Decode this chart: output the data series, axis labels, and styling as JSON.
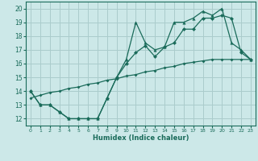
{
  "bg_color": "#cce8e8",
  "grid_color": "#aacccc",
  "line_color": "#1a6b5a",
  "xlabel": "Humidex (Indice chaleur)",
  "xlim": [
    -0.5,
    23.5
  ],
  "ylim": [
    11.5,
    20.5
  ],
  "xticks": [
    0,
    1,
    2,
    3,
    4,
    5,
    6,
    7,
    8,
    9,
    10,
    11,
    12,
    13,
    14,
    15,
    16,
    17,
    18,
    19,
    20,
    21,
    22,
    23
  ],
  "yticks": [
    12,
    13,
    14,
    15,
    16,
    17,
    18,
    19,
    20
  ],
  "line1_x": [
    0,
    1,
    2,
    3,
    4,
    5,
    6,
    7,
    8,
    9,
    10,
    11,
    12,
    13,
    14,
    15,
    16,
    17,
    18,
    19,
    20,
    21,
    22,
    23
  ],
  "line1_y": [
    14,
    13,
    13,
    12.5,
    12,
    12,
    12,
    12,
    13.5,
    15,
    16.3,
    19,
    17.5,
    17,
    17.2,
    19,
    19,
    19.3,
    19.8,
    19.5,
    20,
    17.5,
    17,
    16.3
  ],
  "line2_x": [
    0,
    1,
    2,
    3,
    4,
    5,
    6,
    7,
    8,
    9,
    10,
    11,
    12,
    13,
    14,
    15,
    16,
    17,
    18,
    19,
    20,
    21,
    22,
    23
  ],
  "line2_y": [
    14,
    13,
    13,
    12.5,
    12,
    12,
    12,
    12,
    13.5,
    15,
    16,
    16.8,
    17.3,
    16.5,
    17.2,
    17.5,
    18.5,
    18.5,
    19.3,
    19.3,
    19.5,
    19.3,
    16.8,
    16.3
  ],
  "line3_x": [
    0,
    1,
    2,
    3,
    4,
    5,
    6,
    7,
    8,
    9,
    10,
    11,
    12,
    13,
    14,
    15,
    16,
    17,
    18,
    19,
    20,
    21,
    22,
    23
  ],
  "line3_y": [
    13.5,
    13.7,
    13.9,
    14.0,
    14.2,
    14.3,
    14.5,
    14.6,
    14.8,
    14.9,
    15.1,
    15.2,
    15.4,
    15.5,
    15.7,
    15.8,
    16.0,
    16.1,
    16.2,
    16.3,
    16.3,
    16.3,
    16.3,
    16.3
  ],
  "marker_size": 2.5,
  "linewidth": 0.9
}
